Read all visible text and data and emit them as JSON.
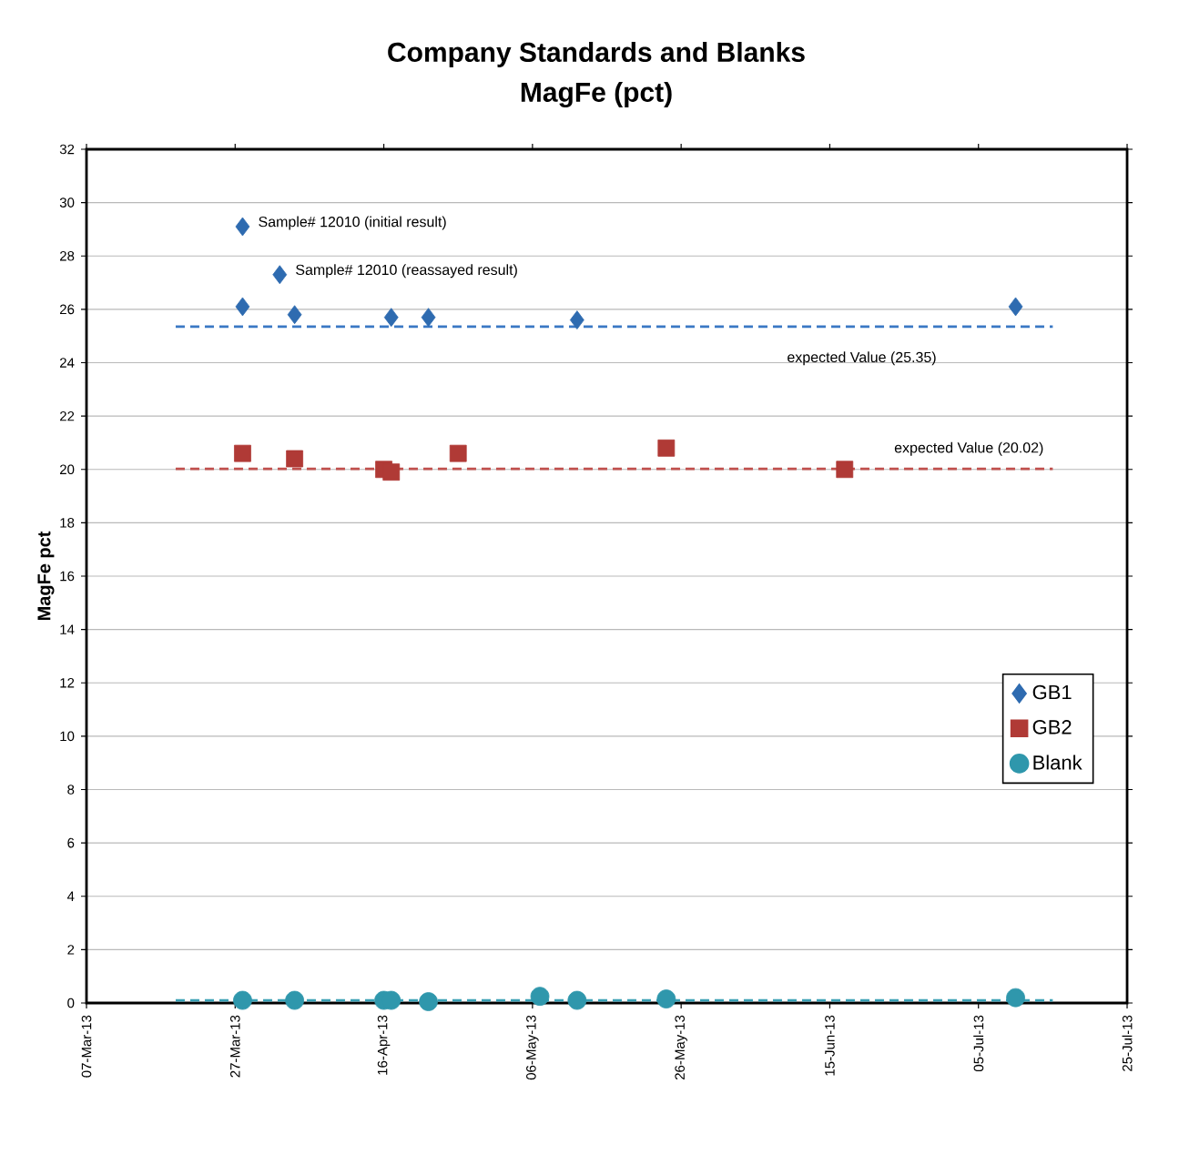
{
  "chart_data": {
    "type": "scatter",
    "title": "Company Standards and Blanks",
    "subtitle": "MagFe (pct)",
    "ylabel": "MagFe pct",
    "xlim": [
      "2013-03-07",
      "2013-07-25"
    ],
    "xticks": [
      {
        "value": "2013-03-07",
        "label": "07-Mar-13"
      },
      {
        "value": "2013-03-27",
        "label": "27-Mar-13"
      },
      {
        "value": "2013-04-16",
        "label": "16-Apr-13"
      },
      {
        "value": "2013-05-06",
        "label": "06-May-13"
      },
      {
        "value": "2013-05-26",
        "label": "26-May-13"
      },
      {
        "value": "2013-06-15",
        "label": "15-Jun-13"
      },
      {
        "value": "2013-07-05",
        "label": "05-Jul-13"
      },
      {
        "value": "2013-07-25",
        "label": "25-Jul-13"
      }
    ],
    "ylim": [
      0,
      32
    ],
    "yticks": [
      0,
      2,
      4,
      6,
      8,
      10,
      12,
      14,
      16,
      18,
      20,
      22,
      24,
      26,
      28,
      30,
      32
    ],
    "grid": "y",
    "legend": "right",
    "series": [
      {
        "name": "GB1",
        "color": "#2e6bb0",
        "marker": "diamond",
        "x": [
          "2013-03-28",
          "2013-03-28",
          "2013-04-02",
          "2013-04-04",
          "2013-04-17",
          "2013-04-22",
          "2013-05-12",
          "2013-07-10"
        ],
        "values": [
          29.1,
          26.1,
          27.3,
          25.8,
          25.7,
          25.7,
          25.6,
          26.1
        ]
      },
      {
        "name": "GB2",
        "color": "#b03a36",
        "marker": "square",
        "x": [
          "2013-03-28",
          "2013-04-04",
          "2013-04-16",
          "2013-04-17",
          "2013-04-26",
          "2013-05-24",
          "2013-06-17"
        ],
        "values": [
          20.6,
          20.4,
          20.0,
          19.9,
          20.6,
          20.8,
          20.0
        ]
      },
      {
        "name": "Blank",
        "color": "#2f97ac",
        "marker": "circle",
        "x": [
          "2013-03-28",
          "2013-04-04",
          "2013-04-16",
          "2013-04-17",
          "2013-04-22",
          "2013-05-07",
          "2013-05-12",
          "2013-05-24",
          "2013-07-10"
        ],
        "values": [
          0.1,
          0.1,
          0.1,
          0.1,
          0.05,
          0.25,
          0.1,
          0.15,
          0.2
        ]
      },
      {
        "type": "line",
        "color": "#3a78c4",
        "line_style": "dashed",
        "marker": "none",
        "x": [
          "2013-03-19",
          "2013-07-15"
        ],
        "values": [
          25.35,
          25.35
        ]
      },
      {
        "type": "line",
        "color": "#c0504d",
        "line_style": "dashed",
        "marker": "none",
        "x": [
          "2013-03-19",
          "2013-07-15"
        ],
        "values": [
          20.02,
          20.02
        ]
      },
      {
        "type": "line",
        "color": "#3aa0b5",
        "line_style": "dashed",
        "marker": "none",
        "x": [
          "2013-03-19",
          "2013-07-15"
        ],
        "values": [
          0.1,
          0.1
        ]
      }
    ],
    "annotations": [
      {
        "text": "Sample# 12010 (initial result)",
        "x": "2013-03-28",
        "y": 29.1
      },
      {
        "text": "Sample# 12010 (reassayed result)",
        "x": "2013-04-02",
        "y": 27.3
      },
      "expected Value (25.35)",
      "expected Value (20.02)"
    ]
  }
}
